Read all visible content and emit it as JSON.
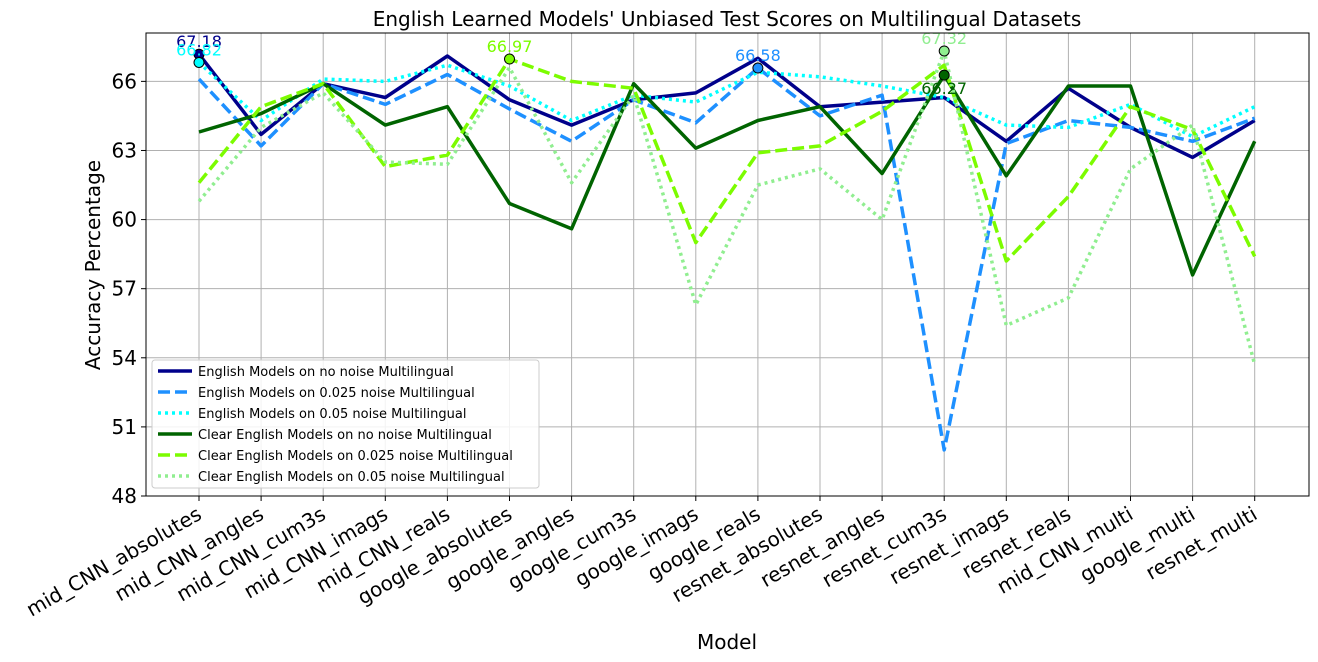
{
  "chart_data": {
    "type": "line",
    "title": "English Learned Models' Unbiased Test Scores on Multilingual Datasets",
    "xlabel": "Model",
    "ylabel": "Accuracy Percentage",
    "ylim": [
      48,
      68.1
    ],
    "yticks": [
      48,
      51,
      54,
      57,
      60,
      63,
      66
    ],
    "grid": true,
    "legend_position": "lower-left",
    "categories": [
      "mid_CNN_absolutes",
      "mid_CNN_angles",
      "mid_CNN_cum3s",
      "mid_CNN_imags",
      "mid_CNN_reals",
      "google_absolutes",
      "google_angles",
      "google_cum3s",
      "google_imags",
      "google_reals",
      "resnet_absolutes",
      "resnet_angles",
      "resnet_cum3s",
      "resnet_imags",
      "resnet_reals",
      "mid_CNN_multi",
      "google_multi",
      "resnet_multi"
    ],
    "series": [
      {
        "name": "English Models on no noise Multilingual",
        "color": "#00008b",
        "dash": "solid",
        "values": [
          67.18,
          63.7,
          65.9,
          65.3,
          67.1,
          65.2,
          64.1,
          65.2,
          65.5,
          67.0,
          64.9,
          65.1,
          65.3,
          63.4,
          65.7,
          64.0,
          62.7,
          64.3
        ],
        "marker_index": 0,
        "marker_label": "67.18"
      },
      {
        "name": "English Models on 0.025 noise Multilingual",
        "color": "#1e90ff",
        "dash": "dashed",
        "values": [
          66.1,
          63.2,
          65.9,
          65.0,
          66.3,
          64.8,
          63.4,
          65.2,
          64.2,
          66.58,
          64.5,
          65.4,
          50.0,
          63.3,
          64.3,
          64.0,
          63.4,
          64.4
        ],
        "marker_index": 9,
        "marker_label": "66.58"
      },
      {
        "name": "English Models on 0.05 noise Multilingual",
        "color": "#00ffff",
        "dash": "dotted",
        "values": [
          66.82,
          64.3,
          66.1,
          66.0,
          66.7,
          65.8,
          64.3,
          65.4,
          65.1,
          66.4,
          66.2,
          65.8,
          65.3,
          64.1,
          64.0,
          65.0,
          63.6,
          64.9
        ],
        "marker_index": 0,
        "marker_label": "66.82"
      },
      {
        "name": "Clear English Models on no noise Multilingual",
        "color": "#006400",
        "dash": "solid",
        "values": [
          63.8,
          64.6,
          65.9,
          64.1,
          64.9,
          60.7,
          59.6,
          65.9,
          63.1,
          64.3,
          64.9,
          62.0,
          66.27,
          61.9,
          65.8,
          65.8,
          57.6,
          63.4
        ],
        "marker_index": 12,
        "marker_label": "66.27"
      },
      {
        "name": "Clear English Models on 0.025 noise Multilingual",
        "color": "#7cfc00",
        "dash": "dashed",
        "values": [
          61.6,
          64.9,
          65.9,
          62.3,
          62.8,
          66.97,
          66.0,
          65.7,
          59.0,
          62.9,
          63.2,
          64.7,
          66.7,
          58.2,
          61.0,
          64.9,
          63.9,
          58.4
        ],
        "marker_index": 5,
        "marker_label": "66.97"
      },
      {
        "name": "Clear English Models on 0.05 noise Multilingual",
        "color": "#90ee90",
        "dash": "dotted",
        "values": [
          60.8,
          64.0,
          65.5,
          62.5,
          62.4,
          66.6,
          61.6,
          65.4,
          56.3,
          61.5,
          62.2,
          60.0,
          67.32,
          55.4,
          56.6,
          62.2,
          64.1,
          53.7
        ],
        "marker_index": 12,
        "marker_label": "67.32"
      }
    ]
  }
}
